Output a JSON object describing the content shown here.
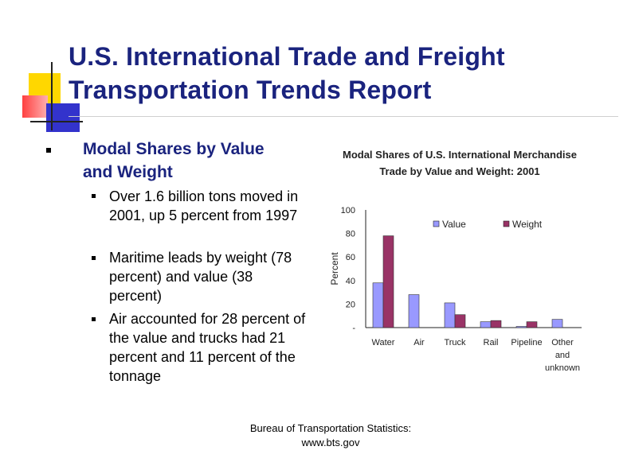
{
  "slide": {
    "title_line1": "U.S. International Trade and Freight",
    "title_line2": "Transportation Trends Report",
    "heading_line1": "Modal Shares by Value",
    "heading_line2": "and Weight",
    "bullets": [
      "Over 1.6 billion tons moved in 2001, up 5 percent from 1997",
      "Maritime leads by weight (78 percent) and value (38 percent)",
      "Air accounted for 28 percent of the value and trucks had 21 percent and 11 percent of the tonnage"
    ],
    "footer_line1": "Bureau of Transportation Statistics:",
    "footer_line2": "www.bts.gov"
  },
  "colors": {
    "title": "#1a237e",
    "value_bar": "#9999ff",
    "weight_bar": "#993366",
    "deco_yellow": "#ffd700",
    "deco_red": "#ff4040",
    "deco_blue": "#3333cc"
  },
  "chart_data": {
    "type": "bar",
    "title_line1": "Modal Shares of U.S. International Merchandise",
    "title_line2": "Trade by Value and Weight:  2001",
    "ylabel": "Percent",
    "ylim": [
      0,
      100
    ],
    "yticks": [
      "-",
      "20",
      "40",
      "60",
      "80",
      "100"
    ],
    "categories": [
      [
        "Water"
      ],
      [
        "Air"
      ],
      [
        "Truck"
      ],
      [
        "Rail"
      ],
      [
        "Pipeline"
      ],
      [
        "Other",
        "and",
        "unknown"
      ]
    ],
    "series": [
      {
        "name": "Value",
        "values": [
          38,
          28,
          21,
          5,
          1,
          7
        ]
      },
      {
        "name": "Weight",
        "values": [
          78,
          0,
          11,
          6,
          5,
          0
        ]
      }
    ],
    "legend_position": "top-right"
  }
}
